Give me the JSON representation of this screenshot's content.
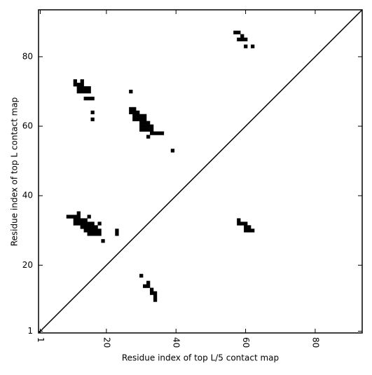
{
  "chart_data": {
    "type": "scatter",
    "xlabel": "Residue index of top L/5 contact map",
    "ylabel": "Residue index of top L contact map",
    "color": "#000000",
    "x": [
      11,
      11,
      12,
      12,
      12,
      13,
      13,
      13,
      13,
      14,
      14,
      15,
      15,
      14,
      15,
      16,
      16,
      16,
      27,
      27,
      28,
      27,
      28,
      29,
      28,
      29,
      30,
      31,
      28,
      29,
      30,
      31,
      30,
      31,
      32,
      30,
      31,
      32,
      33,
      30,
      31,
      32,
      33,
      33,
      34,
      35,
      36,
      32,
      39,
      57,
      58,
      59,
      58,
      59,
      60,
      60,
      62,
      9,
      10,
      11,
      12,
      12,
      11,
      12,
      13,
      14,
      15,
      11,
      12,
      13,
      14,
      15,
      16,
      18,
      13,
      14,
      15,
      16,
      17,
      14,
      15,
      16,
      17,
      18,
      15,
      16,
      17,
      18,
      19,
      23,
      23,
      58,
      58,
      59,
      60,
      60,
      61,
      60,
      61,
      62,
      30,
      31,
      32,
      32,
      33,
      33,
      34,
      34,
      34
    ],
    "values": [
      73,
      72,
      72,
      71,
      70,
      73,
      72,
      71,
      70,
      71,
      70,
      71,
      70,
      68,
      68,
      68,
      64,
      62,
      70,
      65,
      65,
      64,
      64,
      64,
      63,
      63,
      63,
      63,
      62,
      62,
      62,
      62,
      61,
      61,
      61,
      60,
      60,
      60,
      60,
      59,
      59,
      59,
      59,
      58,
      58,
      58,
      58,
      57,
      53,
      87,
      87,
      86,
      85,
      85,
      85,
      83,
      83,
      34,
      34,
      34,
      35,
      34,
      33,
      33,
      33,
      33,
      34,
      32,
      32,
      32,
      32,
      32,
      32,
      32,
      31,
      31,
      31,
      31,
      31,
      30,
      30,
      30,
      30,
      30,
      29,
      29,
      29,
      29,
      27,
      30,
      29,
      33,
      32,
      32,
      32,
      31,
      31,
      30,
      30,
      30,
      17,
      14,
      15,
      14,
      13,
      12,
      12,
      11,
      10
    ],
    "xlim": [
      0.5,
      93.5
    ],
    "ylim": [
      0.5,
      93.5
    ],
    "xticks": [
      1,
      20,
      40,
      60,
      80
    ],
    "yticks": [
      1,
      20,
      40,
      60,
      80
    ]
  }
}
